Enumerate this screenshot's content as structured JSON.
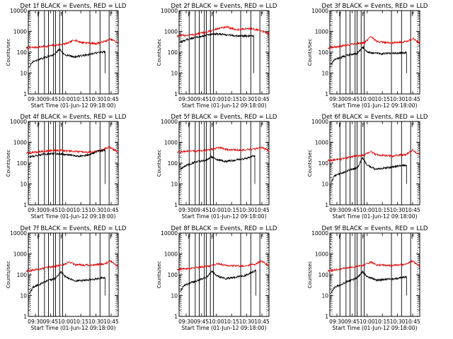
{
  "figure": {
    "colors": {
      "black": "#000000",
      "red": "#e00000"
    }
  },
  "chart_data": [
    {
      "type": "line",
      "title": "Det 1f BLACK = Events, RED = LLD",
      "xlabel": "Start Time (01-Jun-12 09:18:00)",
      "ylabel": "Counts/sec",
      "y_scale": "log",
      "ylim": [
        1,
        10000
      ],
      "xlim_minutes": [
        -37,
        52
      ],
      "yticks": [
        "1",
        "10",
        "100",
        "1000",
        "10000"
      ],
      "xticks": [
        "09:30",
        "09:45",
        "10:00",
        "10:15",
        "10:30",
        "10:45"
      ],
      "markers": [
        "F",
        "F",
        "F"
      ],
      "series": [
        {
          "color": "red",
          "start": "09:21",
          "end": "10:52",
          "anchors": [
            [
              0,
              160
            ],
            [
              0.2,
              190
            ],
            [
              0.35,
              230
            ],
            [
              0.45,
              270
            ],
            [
              0.52,
              390
            ],
            [
              0.6,
              300
            ],
            [
              0.75,
              260
            ],
            [
              0.85,
              330
            ],
            [
              0.92,
              420
            ],
            [
              1,
              280
            ]
          ]
        },
        {
          "color": "black",
          "start": "09:24",
          "end": "10:39",
          "anchors": [
            [
              0,
              20
            ],
            [
              0.05,
              35
            ],
            [
              0.2,
              55
            ],
            [
              0.33,
              80
            ],
            [
              0.4,
              140
            ],
            [
              0.45,
              80
            ],
            [
              0.6,
              60
            ],
            [
              0.8,
              80
            ],
            [
              1,
              110
            ]
          ]
        }
      ]
    },
    {
      "type": "line",
      "title": "Det 2f BLACK = Events, RED = LLD",
      "xlabel": "Start Time (01-Jun-12 09:18:00)",
      "ylabel": "Counts/sec",
      "y_scale": "log",
      "ylim": [
        1,
        10000
      ],
      "xlim_minutes": [
        -37,
        52
      ],
      "yticks": [
        "1",
        "10",
        "100",
        "1000",
        "10000"
      ],
      "xticks": [
        "09:30",
        "09:45",
        "10:00",
        "10:15",
        "10:30",
        "10:45"
      ],
      "markers": [
        "F",
        "F",
        "F"
      ],
      "series": [
        {
          "color": "red",
          "start": "09:21",
          "end": "10:52",
          "anchors": [
            [
              0,
              600
            ],
            [
              0.2,
              720
            ],
            [
              0.35,
              1000
            ],
            [
              0.45,
              1400
            ],
            [
              0.55,
              1600
            ],
            [
              0.65,
              1200
            ],
            [
              0.8,
              1400
            ],
            [
              0.9,
              1100
            ],
            [
              1,
              800
            ]
          ]
        },
        {
          "color": "black",
          "start": "09:24",
          "end": "10:37",
          "anchors": [
            [
              0,
              300
            ],
            [
              0.1,
              420
            ],
            [
              0.3,
              600
            ],
            [
              0.45,
              780
            ],
            [
              0.55,
              720
            ],
            [
              0.7,
              650
            ],
            [
              0.85,
              600
            ],
            [
              1,
              600
            ]
          ]
        }
      ]
    },
    {
      "type": "line",
      "title": "Det 3f BLACK = Events, RED = LLD",
      "xlabel": "Start Time (01-Jun-12 09:18:00)",
      "ylabel": "Counts/sec",
      "y_scale": "log",
      "ylim": [
        1,
        10000
      ],
      "xlim_minutes": [
        -37,
        52
      ],
      "yticks": [
        "1",
        "10",
        "100",
        "1000",
        "10000"
      ],
      "xticks": [
        "09:30",
        "09:45",
        "10:00",
        "10:15",
        "10:30",
        "10:45"
      ],
      "markers": [
        "F",
        "F",
        "F"
      ],
      "series": [
        {
          "color": "red",
          "start": "09:21",
          "end": "10:52",
          "anchors": [
            [
              0,
              160
            ],
            [
              0.15,
              200
            ],
            [
              0.3,
              260
            ],
            [
              0.4,
              300
            ],
            [
              0.47,
              560
            ],
            [
              0.53,
              330
            ],
            [
              0.7,
              280
            ],
            [
              0.85,
              330
            ],
            [
              0.93,
              450
            ],
            [
              1,
              260
            ]
          ]
        },
        {
          "color": "black",
          "start": "09:24",
          "end": "10:39",
          "anchors": [
            [
              0,
              25
            ],
            [
              0.05,
              45
            ],
            [
              0.2,
              70
            ],
            [
              0.35,
              90
            ],
            [
              0.42,
              180
            ],
            [
              0.48,
              100
            ],
            [
              0.65,
              85
            ],
            [
              0.85,
              90
            ],
            [
              1,
              95
            ]
          ]
        }
      ]
    },
    {
      "type": "line",
      "title": "Det 4f BLACK = Events, RED = LLD",
      "xlabel": "Start Time (01-Jun-12 09:18:00)",
      "ylabel": "Counts/sec",
      "y_scale": "log",
      "ylim": [
        1,
        10000
      ],
      "xlim_minutes": [
        -37,
        52
      ],
      "yticks": [
        "1",
        "10",
        "100",
        "1000",
        "10000"
      ],
      "xticks": [
        "09:30",
        "09:45",
        "10:00",
        "10:15",
        "10:30",
        "10:45"
      ],
      "markers": [
        "F",
        "F",
        "F"
      ],
      "series": [
        {
          "color": "red",
          "start": "09:21",
          "end": "10:52",
          "anchors": [
            [
              0,
              300
            ],
            [
              0.2,
              380
            ],
            [
              0.35,
              420
            ],
            [
              0.5,
              370
            ],
            [
              0.65,
              330
            ],
            [
              0.8,
              380
            ],
            [
              0.9,
              600
            ],
            [
              1,
              340
            ]
          ]
        },
        {
          "color": "black",
          "start": "09:24",
          "end": "10:39",
          "anchors": [
            [
              0,
              200
            ],
            [
              0.2,
              270
            ],
            [
              0.35,
              290
            ],
            [
              0.5,
              250
            ],
            [
              0.65,
              220
            ],
            [
              0.8,
              250
            ],
            [
              0.9,
              380
            ],
            [
              1,
              420
            ]
          ]
        }
      ]
    },
    {
      "type": "line",
      "title": "Det 5f BLACK = Events, RED = LLD",
      "xlabel": "Start Time (01-Jun-12 09:18:00)",
      "ylabel": "Counts/sec",
      "y_scale": "log",
      "ylim": [
        1,
        10000
      ],
      "xlim_minutes": [
        -37,
        52
      ],
      "yticks": [
        "1",
        "10",
        "100",
        "1000",
        "10000"
      ],
      "xticks": [
        "09:30",
        "09:45",
        "10:00",
        "10:15",
        "10:30",
        "10:45"
      ],
      "markers": [
        "F",
        "F",
        "F"
      ],
      "series": [
        {
          "color": "red",
          "start": "09:21",
          "end": "10:52",
          "anchors": [
            [
              0,
              350
            ],
            [
              0.2,
              380
            ],
            [
              0.35,
              430
            ],
            [
              0.45,
              560
            ],
            [
              0.55,
              450
            ],
            [
              0.7,
              420
            ],
            [
              0.85,
              480
            ],
            [
              0.92,
              560
            ],
            [
              1,
              400
            ]
          ]
        },
        {
          "color": "black",
          "start": "09:24",
          "end": "10:38",
          "anchors": [
            [
              0,
              50
            ],
            [
              0.05,
              70
            ],
            [
              0.2,
              110
            ],
            [
              0.35,
              140
            ],
            [
              0.42,
              210
            ],
            [
              0.48,
              150
            ],
            [
              0.6,
              120
            ],
            [
              0.85,
              160
            ],
            [
              1,
              230
            ]
          ]
        }
      ]
    },
    {
      "type": "line",
      "title": "Det 6f BLACK = Events, RED = LLD",
      "xlabel": "Start Time (01-Jun-12 09:18:00)",
      "ylabel": "Counts/sec",
      "y_scale": "log",
      "ylim": [
        1,
        10000
      ],
      "xlim_minutes": [
        -37,
        52
      ],
      "yticks": [
        "1",
        "10",
        "100",
        "1000",
        "10000"
      ],
      "xticks": [
        "09:30",
        "09:45",
        "10:00",
        "10:15",
        "10:30",
        "10:45"
      ],
      "markers": [
        "F",
        "F",
        "F"
      ],
      "series": [
        {
          "color": "red",
          "start": "09:21",
          "end": "10:52",
          "anchors": [
            [
              0,
              130
            ],
            [
              0.15,
              160
            ],
            [
              0.3,
              220
            ],
            [
              0.4,
              250
            ],
            [
              0.47,
              360
            ],
            [
              0.53,
              250
            ],
            [
              0.7,
              220
            ],
            [
              0.85,
              260
            ],
            [
              0.92,
              420
            ],
            [
              1,
              250
            ]
          ]
        },
        {
          "color": "black",
          "start": "09:24",
          "end": "10:39",
          "anchors": [
            [
              0,
              12
            ],
            [
              0.05,
              25
            ],
            [
              0.2,
              40
            ],
            [
              0.35,
              60
            ],
            [
              0.42,
              180
            ],
            [
              0.48,
              80
            ],
            [
              0.6,
              50
            ],
            [
              0.85,
              70
            ],
            [
              1,
              80
            ]
          ]
        }
      ]
    },
    {
      "type": "line",
      "title": "Det 7f BLACK = Events, RED = LLD",
      "xlabel": "Start Time (01-Jun-12 09:18:00)",
      "ylabel": "Counts/sec",
      "y_scale": "log",
      "ylim": [
        1,
        10000
      ],
      "xlim_minutes": [
        -37,
        52
      ],
      "yticks": [
        "1",
        "10",
        "100",
        "1000",
        "10000"
      ],
      "xticks": [
        "09:30",
        "09:45",
        "10:00",
        "10:15",
        "10:30",
        "10:45"
      ],
      "markers": [
        "F",
        "F",
        "F"
      ],
      "series": [
        {
          "color": "red",
          "start": "09:21",
          "end": "10:52",
          "anchors": [
            [
              0,
              150
            ],
            [
              0.15,
              190
            ],
            [
              0.3,
              250
            ],
            [
              0.4,
              300
            ],
            [
              0.47,
              420
            ],
            [
              0.53,
              310
            ],
            [
              0.7,
              290
            ],
            [
              0.85,
              330
            ],
            [
              0.92,
              460
            ],
            [
              1,
              230
            ]
          ]
        },
        {
          "color": "black",
          "start": "09:24",
          "end": "10:39",
          "anchors": [
            [
              0,
              12
            ],
            [
              0.05,
              25
            ],
            [
              0.2,
              45
            ],
            [
              0.35,
              70
            ],
            [
              0.42,
              140
            ],
            [
              0.48,
              80
            ],
            [
              0.6,
              50
            ],
            [
              0.85,
              60
            ],
            [
              1,
              75
            ]
          ]
        }
      ]
    },
    {
      "type": "line",
      "title": "Det 8f BLACK = Events, RED = LLD",
      "xlabel": "Start Time (01-Jun-12 09:18:00)",
      "ylabel": "Counts/sec",
      "y_scale": "log",
      "ylim": [
        1,
        10000
      ],
      "xlim_minutes": [
        -37,
        52
      ],
      "yticks": [
        "1",
        "10",
        "100",
        "1000",
        "10000"
      ],
      "xticks": [
        "09:30",
        "09:45",
        "10:00",
        "10:15",
        "10:30",
        "10:45"
      ],
      "markers": [
        "F",
        "F",
        "F"
      ],
      "series": [
        {
          "color": "red",
          "start": "09:21",
          "end": "10:52",
          "anchors": [
            [
              0,
              180
            ],
            [
              0.2,
              220
            ],
            [
              0.35,
              260
            ],
            [
              0.45,
              340
            ],
            [
              0.55,
              280
            ],
            [
              0.7,
              260
            ],
            [
              0.85,
              320
            ],
            [
              0.92,
              480
            ],
            [
              1,
              250
            ]
          ]
        },
        {
          "color": "black",
          "start": "09:24",
          "end": "10:39",
          "anchors": [
            [
              0,
              15
            ],
            [
              0.05,
              30
            ],
            [
              0.2,
              50
            ],
            [
              0.35,
              75
            ],
            [
              0.42,
              150
            ],
            [
              0.48,
              90
            ],
            [
              0.6,
              65
            ],
            [
              0.85,
              90
            ],
            [
              1,
              160
            ]
          ]
        }
      ]
    },
    {
      "type": "line",
      "title": "Det 9f BLACK = Events, RED = LLD",
      "xlabel": "Start Time (01-Jun-12 09:18:00)",
      "ylabel": "Counts/sec",
      "y_scale": "log",
      "ylim": [
        1,
        10000
      ],
      "xlim_minutes": [
        -37,
        52
      ],
      "yticks": [
        "1",
        "10",
        "100",
        "1000",
        "10000"
      ],
      "xticks": [
        "09:30",
        "09:45",
        "10:00",
        "10:15",
        "10:30",
        "10:45"
      ],
      "markers": [
        "F",
        "F",
        "F"
      ],
      "series": [
        {
          "color": "red",
          "start": "09:21",
          "end": "10:52",
          "anchors": [
            [
              0,
              150
            ],
            [
              0.15,
              190
            ],
            [
              0.3,
              250
            ],
            [
              0.4,
              290
            ],
            [
              0.47,
              410
            ],
            [
              0.53,
              300
            ],
            [
              0.7,
              280
            ],
            [
              0.85,
              320
            ],
            [
              0.92,
              450
            ],
            [
              1,
              240
            ]
          ]
        },
        {
          "color": "black",
          "start": "09:24",
          "end": "10:39",
          "anchors": [
            [
              0,
              12
            ],
            [
              0.05,
              25
            ],
            [
              0.2,
              45
            ],
            [
              0.35,
              70
            ],
            [
              0.42,
              140
            ],
            [
              0.48,
              80
            ],
            [
              0.6,
              55
            ],
            [
              0.85,
              65
            ],
            [
              1,
              80
            ]
          ]
        }
      ]
    }
  ]
}
